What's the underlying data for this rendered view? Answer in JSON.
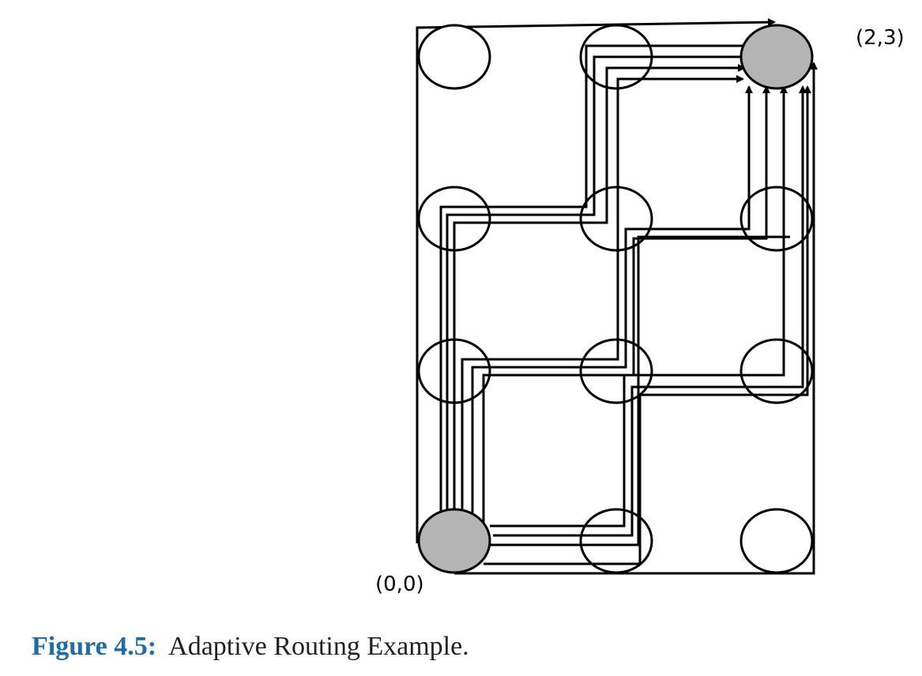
{
  "mesh": {
    "columns": 3,
    "rows": 4,
    "source": {
      "col": 0,
      "row": 0,
      "label": "(0,0)"
    },
    "destination": {
      "col": 2,
      "row": 3,
      "label": "(2,3)"
    },
    "colors": {
      "stroke": "#000000",
      "highlight": "#b4b4b4",
      "node_fill": "#ffffff"
    }
  },
  "caption": {
    "label": "Figure 4.5:",
    "text": "Adaptive Routing Example."
  }
}
